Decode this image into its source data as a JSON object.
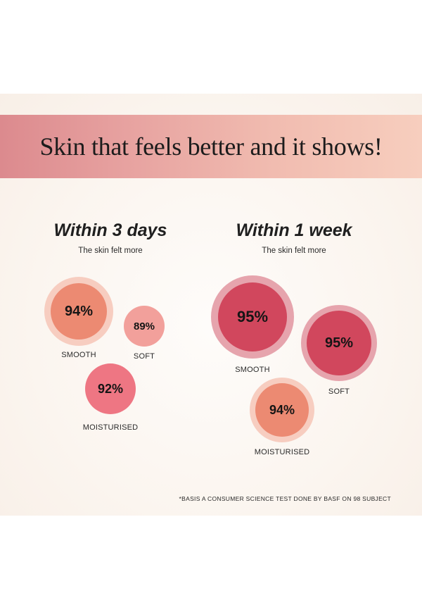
{
  "banner": {
    "title": "Skin that feels better and it shows!"
  },
  "left": {
    "heading": "Within 3 days",
    "subheading": "The skin felt more",
    "stats": [
      {
        "value": "94%",
        "label": "SMOOTH"
      },
      {
        "value": "89%",
        "label": "SOFT"
      },
      {
        "value": "92%",
        "label": "MOISTURISED"
      }
    ]
  },
  "right": {
    "heading": "Within 1 week",
    "subheading": "The skin felt more",
    "stats": [
      {
        "value": "95%",
        "label": "SMOOTH"
      },
      {
        "value": "95%",
        "label": "SOFT"
      },
      {
        "value": "94%",
        "label": "MOISTURISED"
      }
    ]
  },
  "footnote": "*BASIS A CONSUMER SCIENCE TEST DONE BY BASF ON 98 SUBJECT",
  "colors": {
    "coral": "#ec8a72",
    "pink_soft": "#f2a09b",
    "rose": "#ee7683",
    "crimson": "#d1475d",
    "ring_light": "#f7cdc0",
    "ring_crimson": "#e6a4ad"
  }
}
